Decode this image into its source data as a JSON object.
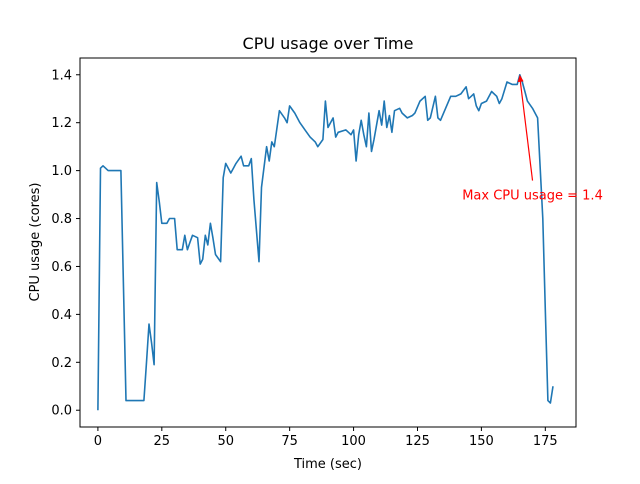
{
  "chart_data": {
    "type": "line",
    "title": "CPU usage over Time",
    "xlabel": "Time (sec)",
    "ylabel": "CPU usage (cores)",
    "xlim": [
      -7,
      187
    ],
    "ylim": [
      -0.07,
      1.47
    ],
    "xticks": [
      0,
      25,
      50,
      75,
      100,
      125,
      150,
      175
    ],
    "yticks": [
      0.0,
      0.2,
      0.4,
      0.6,
      0.8,
      1.0,
      1.2,
      1.4
    ],
    "xtick_labels": [
      "0",
      "25",
      "50",
      "75",
      "100",
      "125",
      "150",
      "175"
    ],
    "ytick_labels": [
      "0.0",
      "0.2",
      "0.4",
      "0.6",
      "0.8",
      "1.0",
      "1.2",
      "1.4"
    ],
    "grid": false,
    "series": [
      {
        "color": "#1f77b4",
        "points": [
          [
            0,
            0.0
          ],
          [
            1,
            1.01
          ],
          [
            2,
            1.02
          ],
          [
            3,
            1.01
          ],
          [
            4,
            1.0
          ],
          [
            6,
            1.0
          ],
          [
            8,
            1.0
          ],
          [
            9,
            1.0
          ],
          [
            11,
            0.04
          ],
          [
            12,
            0.04
          ],
          [
            14,
            0.04
          ],
          [
            16,
            0.04
          ],
          [
            18,
            0.04
          ],
          [
            19,
            0.2
          ],
          [
            20,
            0.36
          ],
          [
            21,
            0.28
          ],
          [
            22,
            0.19
          ],
          [
            23,
            0.95
          ],
          [
            24,
            0.87
          ],
          [
            25,
            0.78
          ],
          [
            27,
            0.78
          ],
          [
            28,
            0.8
          ],
          [
            30,
            0.8
          ],
          [
            31,
            0.67
          ],
          [
            33,
            0.67
          ],
          [
            34,
            0.73
          ],
          [
            35,
            0.67
          ],
          [
            36,
            0.7
          ],
          [
            37,
            0.73
          ],
          [
            39,
            0.72
          ],
          [
            40,
            0.61
          ],
          [
            41,
            0.63
          ],
          [
            42,
            0.73
          ],
          [
            43,
            0.69
          ],
          [
            44,
            0.78
          ],
          [
            45,
            0.72
          ],
          [
            46,
            0.65
          ],
          [
            48,
            0.62
          ],
          [
            49,
            0.97
          ],
          [
            50,
            1.03
          ],
          [
            52,
            0.99
          ],
          [
            53,
            1.01
          ],
          [
            54,
            1.03
          ],
          [
            56,
            1.06
          ],
          [
            57,
            1.02
          ],
          [
            59,
            1.02
          ],
          [
            60,
            1.05
          ],
          [
            61,
            0.88
          ],
          [
            63,
            0.62
          ],
          [
            64,
            0.93
          ],
          [
            66,
            1.1
          ],
          [
            67,
            1.04
          ],
          [
            68,
            1.12
          ],
          [
            69,
            1.1
          ],
          [
            71,
            1.25
          ],
          [
            73,
            1.22
          ],
          [
            74,
            1.2
          ],
          [
            75,
            1.27
          ],
          [
            77,
            1.24
          ],
          [
            79,
            1.2
          ],
          [
            81,
            1.17
          ],
          [
            83,
            1.14
          ],
          [
            85,
            1.12
          ],
          [
            86,
            1.1
          ],
          [
            88,
            1.13
          ],
          [
            89,
            1.29
          ],
          [
            90,
            1.18
          ],
          [
            92,
            1.22
          ],
          [
            93,
            1.14
          ],
          [
            94,
            1.16
          ],
          [
            97,
            1.17
          ],
          [
            99,
            1.15
          ],
          [
            100,
            1.17
          ],
          [
            101,
            1.04
          ],
          [
            102,
            1.15
          ],
          [
            103,
            1.21
          ],
          [
            104,
            1.15
          ],
          [
            105,
            1.1
          ],
          [
            106,
            1.24
          ],
          [
            107,
            1.08
          ],
          [
            108,
            1.13
          ],
          [
            110,
            1.25
          ],
          [
            111,
            1.19
          ],
          [
            112,
            1.29
          ],
          [
            113,
            1.18
          ],
          [
            114,
            1.23
          ],
          [
            115,
            1.16
          ],
          [
            116,
            1.25
          ],
          [
            118,
            1.26
          ],
          [
            119,
            1.24
          ],
          [
            121,
            1.22
          ],
          [
            123,
            1.23
          ],
          [
            124,
            1.24
          ],
          [
            126,
            1.29
          ],
          [
            128,
            1.31
          ],
          [
            129,
            1.21
          ],
          [
            130,
            1.22
          ],
          [
            132,
            1.31
          ],
          [
            133,
            1.22
          ],
          [
            134,
            1.21
          ],
          [
            136,
            1.26
          ],
          [
            138,
            1.31
          ],
          [
            140,
            1.31
          ],
          [
            142,
            1.32
          ],
          [
            144,
            1.35
          ],
          [
            145,
            1.3
          ],
          [
            146,
            1.31
          ],
          [
            147,
            1.32
          ],
          [
            148,
            1.27
          ],
          [
            149,
            1.25
          ],
          [
            150,
            1.28
          ],
          [
            152,
            1.29
          ],
          [
            154,
            1.33
          ],
          [
            156,
            1.31
          ],
          [
            157,
            1.28
          ],
          [
            158,
            1.3
          ],
          [
            160,
            1.37
          ],
          [
            162,
            1.36
          ],
          [
            164,
            1.36
          ],
          [
            165,
            1.4
          ],
          [
            166,
            1.37
          ],
          [
            167,
            1.33
          ],
          [
            168,
            1.29
          ],
          [
            170,
            1.26
          ],
          [
            172,
            1.22
          ],
          [
            174,
            0.8
          ],
          [
            175,
            0.42
          ],
          [
            176,
            0.04
          ],
          [
            177,
            0.03
          ],
          [
            178,
            0.1
          ]
        ]
      }
    ],
    "annotations": [
      {
        "text": "Max CPU usage = 1.4",
        "color": "#ff0000",
        "point": [
          165,
          1.4
        ],
        "label_at": [
          170,
          0.9
        ]
      }
    ]
  }
}
